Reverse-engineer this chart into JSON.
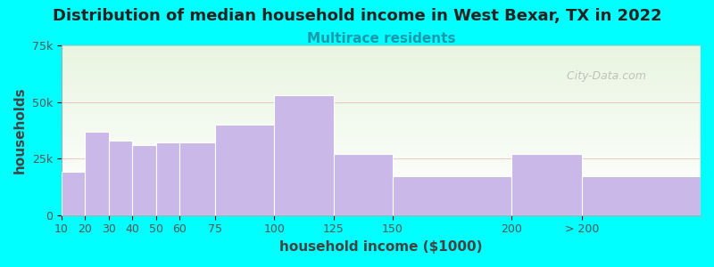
{
  "title": "Distribution of median household income in West Bexar, TX in 2022",
  "subtitle": "Multirace residents",
  "xlabel": "household income ($1000)",
  "ylabel": "households",
  "background_outer": "#00FFFF",
  "background_inner_top": "#e8f5e0",
  "background_inner_bottom": "#ffffff",
  "bar_color": "#c9b8e8",
  "bar_edge_color": "#ffffff",
  "bin_edges": [
    10,
    20,
    30,
    40,
    50,
    60,
    75,
    100,
    125,
    150,
    200,
    230,
    280
  ],
  "bin_labels": [
    "10",
    "20",
    "30",
    "40",
    "50",
    "60",
    "75",
    "100",
    "125",
    "150",
    "200",
    "> 200"
  ],
  "values": [
    19000,
    37000,
    33000,
    31000,
    32000,
    32000,
    40000,
    53000,
    27000,
    17000,
    27000,
    17000
  ],
  "ylim": [
    0,
    75000
  ],
  "ytick_labels": [
    "0",
    "25k",
    "50k",
    "75k"
  ],
  "ytick_values": [
    0,
    25000,
    50000,
    75000
  ],
  "title_fontsize": 13,
  "subtitle_fontsize": 11,
  "subtitle_color": "#1a9aaa",
  "axis_label_fontsize": 11,
  "tick_fontsize": 9,
  "title_color": "#222222",
  "watermark_text": "  City-Data.com",
  "watermark_color": "#aaaaaa",
  "gridline_color": "#dd9999",
  "gridline_alpha": 0.6
}
